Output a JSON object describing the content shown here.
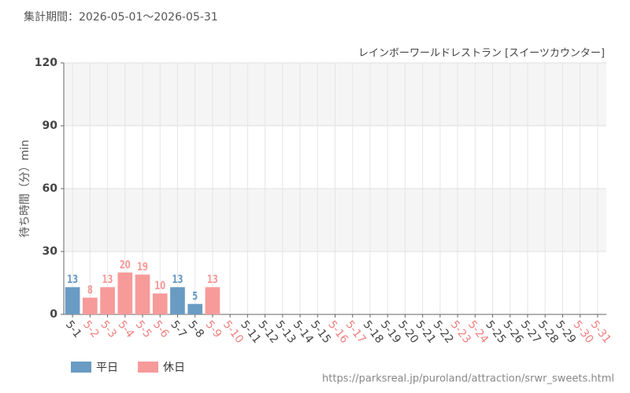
{
  "chart_data": {
    "type": "bar",
    "title": "集計期間：2026-05-01～2026-05-31",
    "subtitle": "レインボーワールドレストラン [スイーツカウンター]",
    "y_label": "待ち時間（分）min",
    "source": "https://parksreal.jp/puroland/attraction/srwr_sweets.html",
    "categories": [
      "5-1",
      "5-2",
      "5-3",
      "5-4",
      "5-5",
      "5-6",
      "5-7",
      "5-8",
      "5-9",
      "5-10",
      "5-11",
      "5-12",
      "5-13",
      "5-14",
      "5-15",
      "5-16",
      "5-17",
      "5-18",
      "5-19",
      "5-20",
      "5-21",
      "5-22",
      "5-23",
      "5-24",
      "5-25",
      "5-26",
      "5-27",
      "5-28",
      "5-29",
      "5-30",
      "5-31"
    ],
    "category_colors": [
      "#444444",
      "#f08080",
      "#f08080",
      "#f08080",
      "#f08080",
      "#f08080",
      "#444444",
      "#444444",
      "#f08080",
      "#f08080",
      "#444444",
      "#444444",
      "#444444",
      "#444444",
      "#444444",
      "#f08080",
      "#f08080",
      "#444444",
      "#444444",
      "#444444",
      "#444444",
      "#444444",
      "#f08080",
      "#f08080",
      "#444444",
      "#444444",
      "#444444",
      "#444444",
      "#444444",
      "#f08080",
      "#f08080"
    ],
    "series": [
      {
        "name": "平日",
        "color": "#6a9bc3",
        "values": [
          13,
          null,
          null,
          null,
          null,
          null,
          13,
          5,
          null,
          null,
          null,
          null,
          null,
          null,
          null,
          null,
          null,
          null,
          null,
          null,
          null,
          null,
          null,
          null,
          null,
          null,
          null,
          null,
          null,
          null,
          null
        ]
      },
      {
        "name": "休日",
        "color": "#f79a9a",
        "values": [
          null,
          8,
          13,
          20,
          19,
          10,
          null,
          null,
          13,
          null,
          null,
          null,
          null,
          null,
          null,
          null,
          null,
          null,
          null,
          null,
          null,
          null,
          null,
          null,
          null,
          null,
          null,
          null,
          null,
          null,
          null
        ]
      }
    ],
    "ylim": [
      0,
      120
    ],
    "yticks": [
      0,
      30,
      60,
      90,
      120
    ],
    "grid": true
  }
}
